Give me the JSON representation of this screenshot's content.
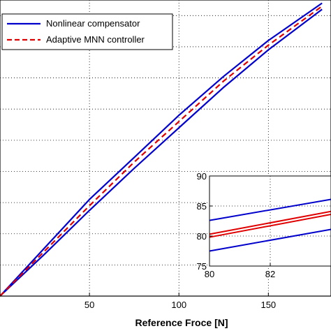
{
  "chart_data": [
    {
      "type": "line",
      "title": "",
      "xlabel": "Reference Froce [N]",
      "ylabel": "",
      "xlim": [
        0,
        185
      ],
      "ylim": [
        0,
        190
      ],
      "x_ticks": [
        50,
        100,
        150
      ],
      "x_tick_labels": [
        "50",
        "100",
        "150"
      ],
      "grid": true,
      "legend_position": "top-left",
      "series": [
        {
          "name": "Nonlinear compensator",
          "color": "#0000cc",
          "style": "solid",
          "x": [
            0,
            25,
            50,
            75,
            100,
            125,
            150,
            180
          ],
          "y": [
            0,
            31,
            62,
            89,
            116,
            141,
            164,
            188
          ]
        },
        {
          "name": "",
          "color": "#0000cc",
          "style": "solid",
          "x": [
            0,
            25,
            50,
            75,
            100,
            125,
            150,
            180
          ],
          "y": [
            0,
            27,
            55,
            82,
            108,
            134,
            158,
            184
          ]
        },
        {
          "name": "Adaptive MNN controller",
          "color": "#e00000",
          "style": "dashed",
          "x": [
            0,
            25,
            50,
            75,
            100,
            125,
            150,
            180
          ],
          "y": [
            0,
            29,
            58,
            86,
            112,
            138,
            161,
            186
          ]
        }
      ]
    },
    {
      "type": "line",
      "title": "",
      "xlim": [
        80,
        84
      ],
      "ylim": [
        75,
        90
      ],
      "x_ticks": [
        80,
        82
      ],
      "x_tick_labels": [
        "80",
        "82"
      ],
      "y_ticks": [
        75,
        80,
        85,
        90
      ],
      "y_tick_labels": [
        "75",
        "80",
        "85",
        "90"
      ],
      "grid": true,
      "series": [
        {
          "color": "#0000cc",
          "style": "solid",
          "x": [
            80,
            84
          ],
          "y": [
            82.6,
            86.1
          ]
        },
        {
          "color": "#e00000",
          "style": "solid",
          "x": [
            80,
            84
          ],
          "y": [
            80.3,
            84.1
          ]
        },
        {
          "color": "#e00000",
          "style": "solid",
          "x": [
            80,
            84
          ],
          "y": [
            79.8,
            83.6
          ]
        },
        {
          "color": "#0000cc",
          "style": "solid",
          "x": [
            80,
            84
          ],
          "y": [
            77.5,
            81.1
          ]
        }
      ]
    }
  ]
}
